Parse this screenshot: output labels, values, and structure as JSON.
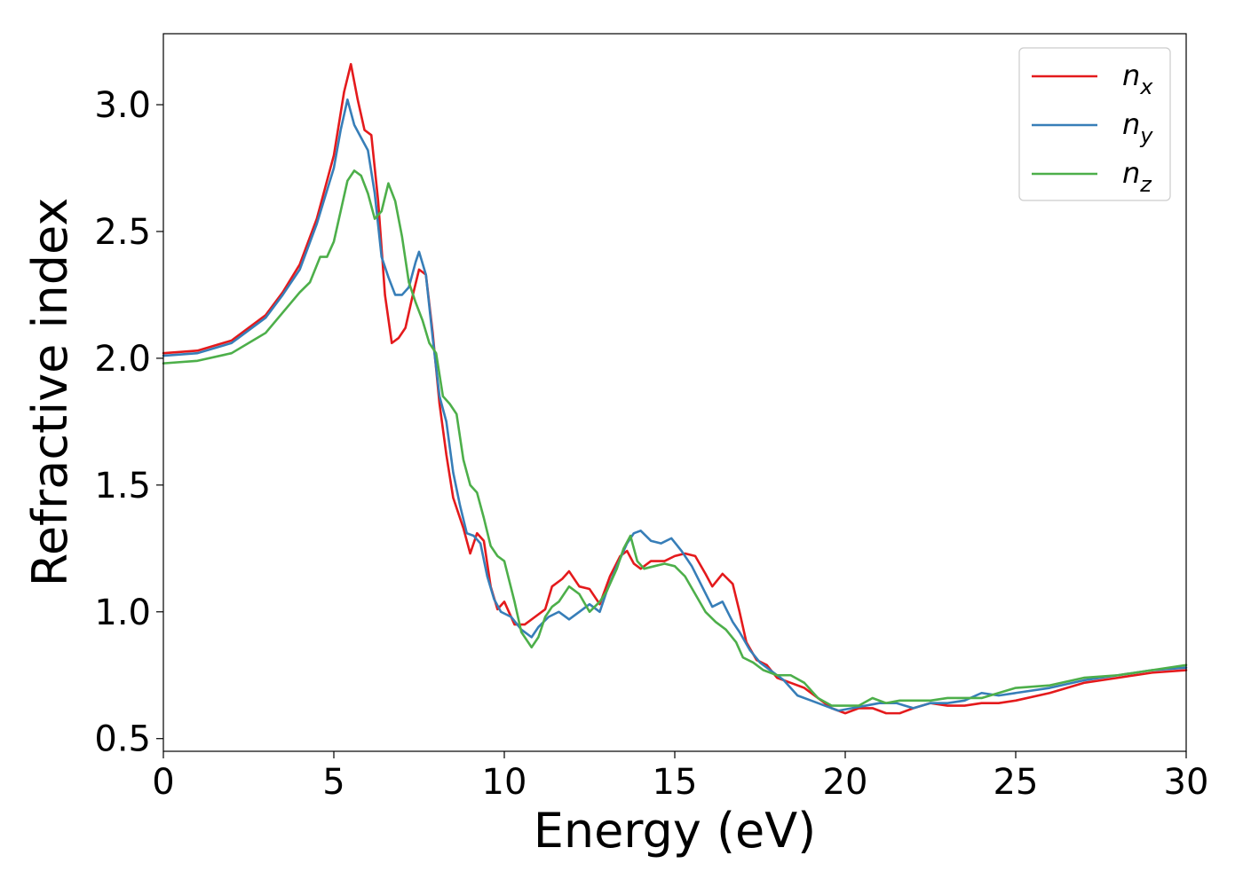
{
  "chart_data": {
    "type": "line",
    "xlabel": "Energy (eV)",
    "ylabel": "Refractive index",
    "xlim": [
      0,
      30
    ],
    "ylim": [
      0.45,
      3.28
    ],
    "xticks": [
      "0",
      "5",
      "10",
      "15",
      "20",
      "25",
      "30"
    ],
    "yticks": [
      "0.5",
      "1.0",
      "1.5",
      "2.0",
      "2.5",
      "3.0"
    ],
    "grid": false,
    "legend_position": "top-right",
    "series": [
      {
        "name": "n_x",
        "legend_main": "n",
        "legend_sub": "x",
        "color": "#e41a1c",
        "points": [
          [
            0,
            2.02
          ],
          [
            1,
            2.03
          ],
          [
            2,
            2.07
          ],
          [
            3,
            2.17
          ],
          [
            3.5,
            2.26
          ],
          [
            4,
            2.37
          ],
          [
            4.5,
            2.55
          ],
          [
            5,
            2.8
          ],
          [
            5.3,
            3.05
          ],
          [
            5.5,
            3.16
          ],
          [
            5.7,
            3.02
          ],
          [
            5.9,
            2.9
          ],
          [
            6.1,
            2.88
          ],
          [
            6.3,
            2.62
          ],
          [
            6.5,
            2.25
          ],
          [
            6.7,
            2.06
          ],
          [
            6.9,
            2.08
          ],
          [
            7.1,
            2.12
          ],
          [
            7.3,
            2.24
          ],
          [
            7.5,
            2.35
          ],
          [
            7.7,
            2.33
          ],
          [
            7.9,
            2.1
          ],
          [
            8.1,
            1.82
          ],
          [
            8.3,
            1.62
          ],
          [
            8.5,
            1.45
          ],
          [
            8.8,
            1.33
          ],
          [
            9.0,
            1.23
          ],
          [
            9.2,
            1.31
          ],
          [
            9.4,
            1.28
          ],
          [
            9.6,
            1.1
          ],
          [
            9.8,
            1.01
          ],
          [
            10.0,
            1.04
          ],
          [
            10.3,
            0.95
          ],
          [
            10.6,
            0.95
          ],
          [
            10.9,
            0.98
          ],
          [
            11.2,
            1.01
          ],
          [
            11.4,
            1.1
          ],
          [
            11.7,
            1.13
          ],
          [
            11.9,
            1.16
          ],
          [
            12.2,
            1.1
          ],
          [
            12.5,
            1.09
          ],
          [
            12.8,
            1.03
          ],
          [
            13.1,
            1.14
          ],
          [
            13.4,
            1.22
          ],
          [
            13.6,
            1.24
          ],
          [
            13.8,
            1.19
          ],
          [
            14.0,
            1.17
          ],
          [
            14.3,
            1.2
          ],
          [
            14.7,
            1.2
          ],
          [
            15.0,
            1.22
          ],
          [
            15.3,
            1.23
          ],
          [
            15.6,
            1.22
          ],
          [
            15.9,
            1.15
          ],
          [
            16.1,
            1.1
          ],
          [
            16.4,
            1.15
          ],
          [
            16.7,
            1.11
          ],
          [
            16.9,
            1.0
          ],
          [
            17.1,
            0.88
          ],
          [
            17.4,
            0.81
          ],
          [
            17.7,
            0.79
          ],
          [
            18.0,
            0.74
          ],
          [
            18.4,
            0.72
          ],
          [
            18.8,
            0.7
          ],
          [
            19.2,
            0.66
          ],
          [
            19.6,
            0.62
          ],
          [
            20.0,
            0.6
          ],
          [
            20.4,
            0.62
          ],
          [
            20.8,
            0.62
          ],
          [
            21.2,
            0.6
          ],
          [
            21.6,
            0.6
          ],
          [
            22.0,
            0.62
          ],
          [
            22.5,
            0.64
          ],
          [
            23.0,
            0.63
          ],
          [
            23.5,
            0.63
          ],
          [
            24.0,
            0.64
          ],
          [
            24.5,
            0.64
          ],
          [
            25.0,
            0.65
          ],
          [
            26.0,
            0.68
          ],
          [
            27.0,
            0.72
          ],
          [
            28.0,
            0.74
          ],
          [
            29.0,
            0.76
          ],
          [
            30.0,
            0.77
          ]
        ]
      },
      {
        "name": "n_y",
        "legend_main": "n",
        "legend_sub": "y",
        "color": "#377eb8",
        "points": [
          [
            0,
            2.01
          ],
          [
            1,
            2.02
          ],
          [
            2,
            2.06
          ],
          [
            3,
            2.16
          ],
          [
            3.5,
            2.25
          ],
          [
            4,
            2.35
          ],
          [
            4.5,
            2.53
          ],
          [
            5,
            2.75
          ],
          [
            5.2,
            2.9
          ],
          [
            5.4,
            3.02
          ],
          [
            5.6,
            2.92
          ],
          [
            5.8,
            2.87
          ],
          [
            6.0,
            2.82
          ],
          [
            6.2,
            2.65
          ],
          [
            6.4,
            2.4
          ],
          [
            6.6,
            2.32
          ],
          [
            6.8,
            2.25
          ],
          [
            7.0,
            2.25
          ],
          [
            7.2,
            2.28
          ],
          [
            7.4,
            2.38
          ],
          [
            7.5,
            2.42
          ],
          [
            7.7,
            2.33
          ],
          [
            7.9,
            2.08
          ],
          [
            8.1,
            1.85
          ],
          [
            8.3,
            1.75
          ],
          [
            8.5,
            1.55
          ],
          [
            8.7,
            1.42
          ],
          [
            8.9,
            1.31
          ],
          [
            9.1,
            1.3
          ],
          [
            9.3,
            1.27
          ],
          [
            9.5,
            1.14
          ],
          [
            9.7,
            1.05
          ],
          [
            9.9,
            1.0
          ],
          [
            10.2,
            0.98
          ],
          [
            10.5,
            0.93
          ],
          [
            10.8,
            0.9
          ],
          [
            11.0,
            0.94
          ],
          [
            11.3,
            0.98
          ],
          [
            11.6,
            1.0
          ],
          [
            11.9,
            0.97
          ],
          [
            12.2,
            1.0
          ],
          [
            12.5,
            1.03
          ],
          [
            12.8,
            1.0
          ],
          [
            13.0,
            1.08
          ],
          [
            13.3,
            1.18
          ],
          [
            13.6,
            1.27
          ],
          [
            13.8,
            1.31
          ],
          [
            14.0,
            1.32
          ],
          [
            14.3,
            1.28
          ],
          [
            14.6,
            1.27
          ],
          [
            14.9,
            1.29
          ],
          [
            15.2,
            1.24
          ],
          [
            15.5,
            1.18
          ],
          [
            15.8,
            1.1
          ],
          [
            16.1,
            1.02
          ],
          [
            16.4,
            1.04
          ],
          [
            16.7,
            0.96
          ],
          [
            16.9,
            0.92
          ],
          [
            17.2,
            0.85
          ],
          [
            17.5,
            0.8
          ],
          [
            17.8,
            0.77
          ],
          [
            18.2,
            0.73
          ],
          [
            18.6,
            0.67
          ],
          [
            19.0,
            0.65
          ],
          [
            19.4,
            0.63
          ],
          [
            19.8,
            0.61
          ],
          [
            20.2,
            0.62
          ],
          [
            20.6,
            0.63
          ],
          [
            21.0,
            0.64
          ],
          [
            21.5,
            0.64
          ],
          [
            22.0,
            0.62
          ],
          [
            22.5,
            0.64
          ],
          [
            23.0,
            0.64
          ],
          [
            23.5,
            0.65
          ],
          [
            24.0,
            0.68
          ],
          [
            24.5,
            0.67
          ],
          [
            25.0,
            0.68
          ],
          [
            26.0,
            0.7
          ],
          [
            27.0,
            0.73
          ],
          [
            28.0,
            0.75
          ],
          [
            29.0,
            0.77
          ],
          [
            30.0,
            0.78
          ]
        ]
      },
      {
        "name": "n_z",
        "legend_main": "n",
        "legend_sub": "z",
        "color": "#4daf4a",
        "points": [
          [
            0,
            1.98
          ],
          [
            1,
            1.99
          ],
          [
            2,
            2.02
          ],
          [
            3,
            2.1
          ],
          [
            3.5,
            2.18
          ],
          [
            4,
            2.26
          ],
          [
            4.3,
            2.3
          ],
          [
            4.6,
            2.4
          ],
          [
            4.8,
            2.4
          ],
          [
            5.0,
            2.46
          ],
          [
            5.2,
            2.58
          ],
          [
            5.4,
            2.7
          ],
          [
            5.6,
            2.74
          ],
          [
            5.8,
            2.72
          ],
          [
            6.0,
            2.65
          ],
          [
            6.2,
            2.55
          ],
          [
            6.4,
            2.58
          ],
          [
            6.6,
            2.69
          ],
          [
            6.8,
            2.62
          ],
          [
            7.0,
            2.48
          ],
          [
            7.2,
            2.3
          ],
          [
            7.4,
            2.22
          ],
          [
            7.6,
            2.15
          ],
          [
            7.8,
            2.06
          ],
          [
            8.0,
            2.02
          ],
          [
            8.2,
            1.85
          ],
          [
            8.4,
            1.82
          ],
          [
            8.6,
            1.78
          ],
          [
            8.8,
            1.6
          ],
          [
            9.0,
            1.5
          ],
          [
            9.2,
            1.47
          ],
          [
            9.4,
            1.37
          ],
          [
            9.6,
            1.26
          ],
          [
            9.8,
            1.22
          ],
          [
            10.0,
            1.2
          ],
          [
            10.3,
            1.04
          ],
          [
            10.5,
            0.92
          ],
          [
            10.8,
            0.86
          ],
          [
            11.0,
            0.9
          ],
          [
            11.2,
            0.98
          ],
          [
            11.4,
            1.02
          ],
          [
            11.6,
            1.04
          ],
          [
            11.9,
            1.1
          ],
          [
            12.2,
            1.07
          ],
          [
            12.5,
            1.0
          ],
          [
            12.8,
            1.04
          ],
          [
            13.0,
            1.08
          ],
          [
            13.3,
            1.17
          ],
          [
            13.5,
            1.25
          ],
          [
            13.7,
            1.3
          ],
          [
            13.9,
            1.2
          ],
          [
            14.1,
            1.17
          ],
          [
            14.4,
            1.18
          ],
          [
            14.7,
            1.19
          ],
          [
            15.0,
            1.18
          ],
          [
            15.3,
            1.14
          ],
          [
            15.6,
            1.07
          ],
          [
            15.9,
            1.0
          ],
          [
            16.2,
            0.96
          ],
          [
            16.5,
            0.93
          ],
          [
            16.8,
            0.88
          ],
          [
            17.0,
            0.82
          ],
          [
            17.3,
            0.8
          ],
          [
            17.6,
            0.77
          ],
          [
            18.0,
            0.75
          ],
          [
            18.4,
            0.75
          ],
          [
            18.8,
            0.72
          ],
          [
            19.2,
            0.66
          ],
          [
            19.6,
            0.63
          ],
          [
            20.0,
            0.63
          ],
          [
            20.4,
            0.63
          ],
          [
            20.8,
            0.66
          ],
          [
            21.2,
            0.64
          ],
          [
            21.6,
            0.65
          ],
          [
            22.0,
            0.65
          ],
          [
            22.5,
            0.65
          ],
          [
            23.0,
            0.66
          ],
          [
            23.5,
            0.66
          ],
          [
            24.0,
            0.66
          ],
          [
            24.5,
            0.68
          ],
          [
            25.0,
            0.7
          ],
          [
            26.0,
            0.71
          ],
          [
            27.0,
            0.74
          ],
          [
            28.0,
            0.75
          ],
          [
            29.0,
            0.77
          ],
          [
            30.0,
            0.79
          ]
        ]
      }
    ]
  }
}
